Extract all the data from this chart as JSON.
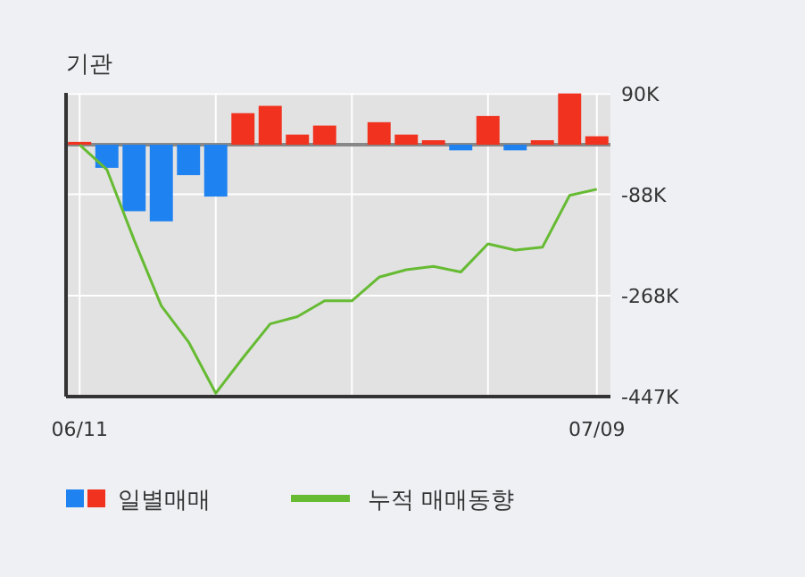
{
  "chart_data": {
    "type": "bar",
    "title": "기관",
    "categories": [
      "06/11",
      null,
      null,
      null,
      null,
      null,
      null,
      null,
      null,
      null,
      null,
      null,
      null,
      null,
      null,
      null,
      null,
      null,
      null,
      "07/09"
    ],
    "series": [
      {
        "name": "일별매매",
        "values": [
          5,
          -41,
          -118,
          -136,
          -54,
          -92,
          56,
          69,
          18,
          34,
          0,
          40,
          18,
          8,
          -10,
          51,
          -10,
          8,
          91,
          15
        ],
        "colors": [
          "#f0321e",
          "#1e82f0",
          "#1e82f0",
          "#1e82f0",
          "#1e82f0",
          "#1e82f0",
          "#f0321e",
          "#f0321e",
          "#f0321e",
          "#f0321e",
          "#f0321e",
          "#f0321e",
          "#f0321e",
          "#f0321e",
          "#1e82f0",
          "#f0321e",
          "#1e82f0",
          "#f0321e",
          "#f0321e",
          "#f0321e"
        ]
      },
      {
        "name": "누적 매매동향",
        "type": "line",
        "color": "#66bb33",
        "values": [
          0,
          -44,
          -169,
          -286,
          -350,
          -441,
          -378,
          -318,
          -305,
          -277,
          -277,
          -235,
          -222,
          -216,
          -226,
          -176,
          -187,
          -182,
          -90,
          -79
        ]
      }
    ],
    "ylim": [
      -447,
      92
    ],
    "yticks": [
      {
        "value": 90,
        "label": "90K"
      },
      {
        "value": -88,
        "label": "-88K"
      },
      {
        "value": -268,
        "label": "-268K"
      },
      {
        "value": -447,
        "label": "-447K"
      }
    ],
    "grid": true,
    "legend": "bottom"
  }
}
